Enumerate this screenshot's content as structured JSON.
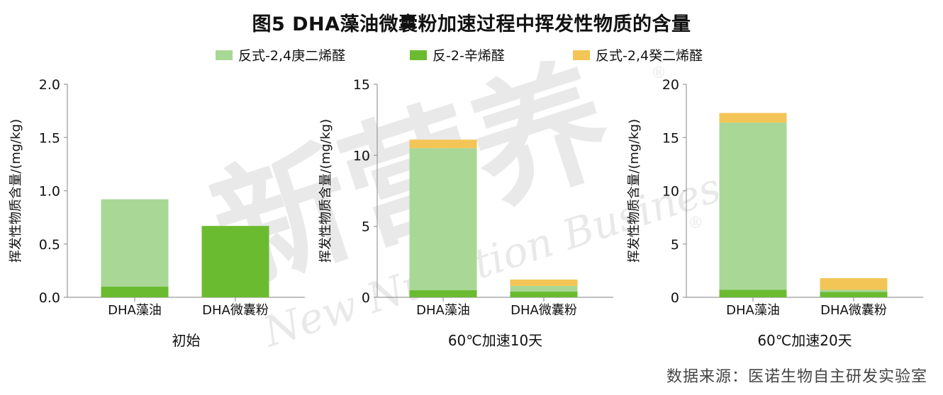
{
  "title": "图5 DHA藻油微囊粉加速过程中挥发性物质的含量",
  "legend": [
    {
      "name": "反式-2,4庚二烯醛",
      "color": "#a8d796"
    },
    {
      "name": "反-2-辛烯醛",
      "color": "#6bbb31"
    },
    {
      "name": "反式-2,4癸二烯醛",
      "color": "#f3c556"
    }
  ],
  "source": "数据来源：医诺生物自主研发实验室",
  "watermark": {
    "cn": "新营养",
    "en": "New Nutrition Business",
    "mark": "®"
  },
  "chart_data": [
    {
      "type": "bar",
      "stacked": true,
      "subtitle": "初始",
      "categories": [
        "DHA藻油",
        "DHA微囊粉"
      ],
      "ylabel": "挥发性物质含量/(mg/kg)",
      "ylim": [
        0,
        2.0
      ],
      "yticks": [
        "0.0",
        "0.5",
        "1.0",
        "1.5",
        "2.0"
      ],
      "series": [
        {
          "name": "反-2-辛烯醛",
          "values": [
            0.1,
            0.67
          ]
        },
        {
          "name": "反式-2,4庚二烯醛",
          "values": [
            0.82,
            0.0
          ]
        },
        {
          "name": "反式-2,4癸二烯醛",
          "values": [
            0.0,
            0.0
          ]
        }
      ]
    },
    {
      "type": "bar",
      "stacked": true,
      "subtitle": "60℃加速10天",
      "categories": [
        "DHA藻油",
        "DHA微囊粉"
      ],
      "ylabel": "挥发性物质含量/(mg/kg)",
      "ylim": [
        0,
        15
      ],
      "yticks": [
        "0",
        "5",
        "10",
        "15"
      ],
      "series": [
        {
          "name": "反-2-辛烯醛",
          "values": [
            0.5,
            0.4
          ]
        },
        {
          "name": "反式-2,4庚二烯醛",
          "values": [
            10.0,
            0.4
          ]
        },
        {
          "name": "反式-2,4癸二烯醛",
          "values": [
            0.6,
            0.45
          ]
        }
      ]
    },
    {
      "type": "bar",
      "stacked": true,
      "subtitle": "60℃加速20天",
      "categories": [
        "DHA藻油",
        "DHA微囊粉"
      ],
      "ylabel": "挥发性物质含量/(mg/kg)",
      "ylim": [
        0,
        20
      ],
      "yticks": [
        "0",
        "5",
        "10",
        "15",
        "20"
      ],
      "series": [
        {
          "name": "反-2-辛烯醛",
          "values": [
            0.7,
            0.5
          ]
        },
        {
          "name": "反式-2,4庚二烯醛",
          "values": [
            15.7,
            0.2
          ]
        },
        {
          "name": "反式-2,4癸二烯醛",
          "values": [
            0.9,
            1.1
          ]
        }
      ]
    }
  ]
}
